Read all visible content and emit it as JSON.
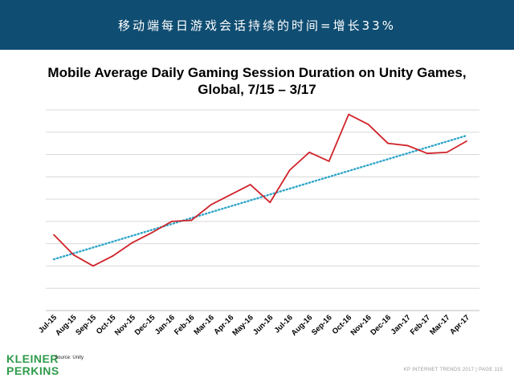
{
  "banner": {
    "text": "移动端每日游戏会话持续的时间=增长33%"
  },
  "chart_data": {
    "type": "line",
    "title_line1": "Mobile Average Daily Gaming Session Duration on Unity Games,",
    "title_line2": "Global, 7/15 – 3/17",
    "categories": [
      "Jul-15",
      "Aug-15",
      "Sep-15",
      "Oct-15",
      "Nov-15",
      "Dec-15",
      "Jan-16",
      "Feb-16",
      "Mar-16",
      "Apr-16",
      "May-16",
      "Jun-16",
      "Jul-16",
      "Aug-16",
      "Sep-16",
      "Oct-16",
      "Nov-16",
      "Dec-16",
      "Jan-17",
      "Feb-17",
      "Mar-17",
      "Apr-17"
    ],
    "series": [
      {
        "values": [
          2.5,
          1.6,
          1.1,
          1.55,
          2.15,
          2.6,
          3.1,
          3.15,
          3.85,
          4.3,
          4.75,
          3.95,
          5.4,
          6.2,
          5.8,
          7.9,
          7.45,
          6.6,
          6.5,
          6.15,
          6.2,
          6.7
        ],
        "color": "#d0232a"
      },
      {
        "trend": [
          1.4,
          6.95
        ],
        "color": "#2fa6c9"
      }
    ],
    "ylim": [
      -0.9,
      8.1
    ],
    "grid": true,
    "gridlines": 9
  },
  "footer": {
    "logo_line1": "KLEINER",
    "logo_line2": "PERKINS",
    "source": "Source: Unity",
    "page": "KP INTERNET TRENDS 2017  |  PAGE 115"
  }
}
